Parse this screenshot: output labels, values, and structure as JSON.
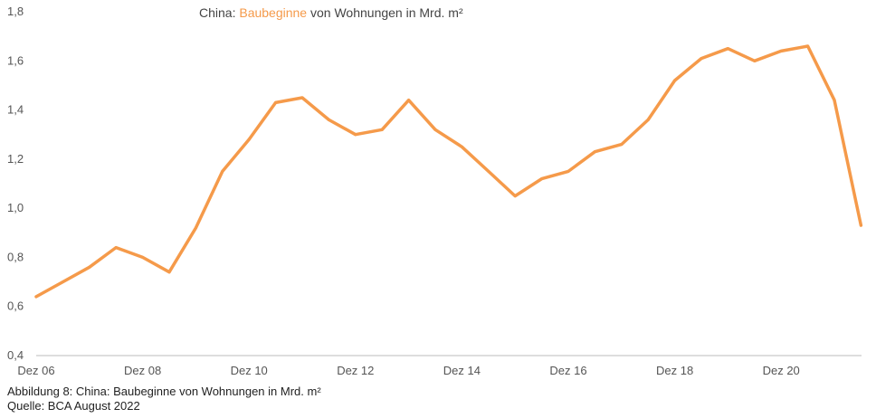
{
  "chart_data": {
    "type": "line",
    "title_parts": [
      "China: ",
      "Baubeginne",
      " von Wohnungen in Mrd. m²"
    ],
    "xlabel": "",
    "ylabel": "",
    "ylim": [
      0.4,
      1.8
    ],
    "y_ticks": [
      "0,4",
      "0,6",
      "0,8",
      "1,0",
      "1,2",
      "1,4",
      "1,6",
      "1,8"
    ],
    "x_ticks": [
      "Dez 06",
      "Dez 08",
      "Dez 10",
      "Dez 12",
      "Dez 14",
      "Dez 16",
      "Dez 18",
      "Dez 20"
    ],
    "grid": false,
    "line_color": "#f59a4a",
    "series": [
      {
        "x": [
          "Dez 06",
          "Jun 07",
          "Dez 07",
          "Jun 08",
          "Dez 08",
          "Jun 09",
          "Dez 09",
          "Jun 10",
          "Dez 10",
          "Jun 11",
          "Dez 11",
          "Jun 12",
          "Dez 12",
          "Jun 13",
          "Dez 13",
          "Jun 14",
          "Dez 14",
          "Jun 15",
          "Dez 15",
          "Jun 16",
          "Dez 16",
          "Jun 17",
          "Dez 17",
          "Jun 18",
          "Dez 18",
          "Jun 19",
          "Dez 19",
          "Jun 20",
          "Dez 20",
          "Jun 21",
          "Dez 21",
          "Jun 22"
        ],
        "values": [
          0.64,
          0.7,
          0.76,
          0.84,
          0.8,
          0.74,
          0.92,
          1.15,
          1.28,
          1.43,
          1.45,
          1.36,
          1.3,
          1.32,
          1.44,
          1.32,
          1.25,
          1.15,
          1.05,
          1.12,
          1.15,
          1.23,
          1.26,
          1.36,
          1.52,
          1.61,
          1.65,
          1.6,
          1.64,
          1.66,
          1.44,
          0.93
        ]
      }
    ]
  },
  "caption": "Abbildung 8: China: Baubeginne von Wohnungen in Mrd. m²",
  "source": "Quelle: BCA August 2022"
}
